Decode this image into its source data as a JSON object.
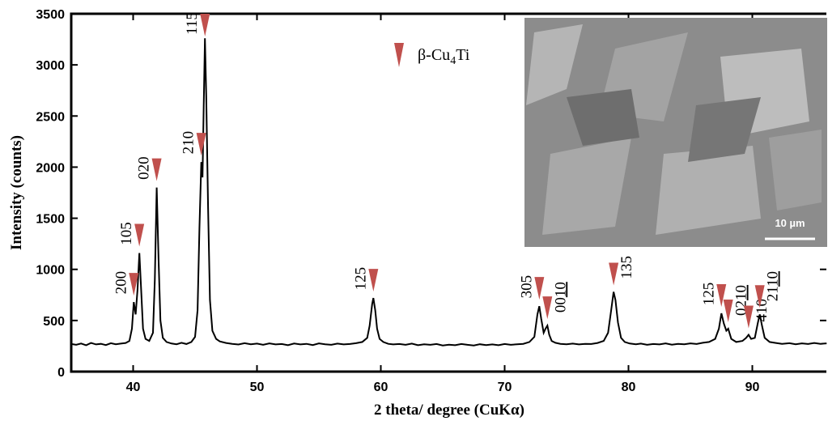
{
  "chart_data": {
    "type": "line",
    "xlabel": "2 theta/ degree (CuKα)",
    "ylabel": "Intensity (counts)",
    "xlim": [
      35,
      96
    ],
    "ylim": [
      0,
      3500
    ],
    "xticks": [
      40,
      50,
      60,
      70,
      80,
      90
    ],
    "yticks": [
      0,
      500,
      1000,
      1500,
      2000,
      2500,
      3000,
      3500
    ],
    "grid": false,
    "color": "#000000",
    "marker_color": "#c0504d",
    "legend": {
      "parts": [
        "β-Cu",
        "4",
        "Ti"
      ]
    },
    "inset": {
      "scale_bar_label": "10 µm"
    },
    "x": [
      35.0,
      35.4,
      35.8,
      36.2,
      36.6,
      37.0,
      37.4,
      37.8,
      38.2,
      38.6,
      39.0,
      39.4,
      39.7,
      39.9,
      40.05,
      40.2,
      40.35,
      40.5,
      40.65,
      40.8,
      41.0,
      41.3,
      41.6,
      41.75,
      41.9,
      42.05,
      42.2,
      42.4,
      42.7,
      43.1,
      43.5,
      43.9,
      44.3,
      44.7,
      45.0,
      45.2,
      45.35,
      45.5,
      45.6,
      45.7,
      45.8,
      45.9,
      46.05,
      46.2,
      46.4,
      46.7,
      47.0,
      47.5,
      48,
      48.5,
      49,
      49.5,
      50,
      50.5,
      51,
      51.5,
      52,
      52.5,
      53,
      53.5,
      54,
      54.5,
      55,
      55.5,
      56,
      56.5,
      57,
      57.5,
      58,
      58.5,
      58.9,
      59.1,
      59.3,
      59.4,
      59.55,
      59.7,
      59.9,
      60.2,
      60.6,
      61,
      61.5,
      62,
      62.5,
      63,
      63.5,
      64,
      64.5,
      65,
      65.5,
      66,
      66.5,
      67,
      67.5,
      68,
      68.5,
      69,
      69.5,
      70,
      70.5,
      71,
      71.5,
      72,
      72.4,
      72.65,
      72.8,
      72.95,
      73.15,
      73.3,
      73.45,
      73.6,
      73.8,
      74.1,
      74.5,
      75,
      75.5,
      76,
      76.5,
      77,
      77.5,
      78,
      78.35,
      78.6,
      78.8,
      78.95,
      79.15,
      79.4,
      79.7,
      80.1,
      80.6,
      81,
      81.5,
      82,
      82.5,
      83,
      83.5,
      84,
      84.5,
      85,
      85.5,
      86,
      86.5,
      87,
      87.3,
      87.5,
      87.7,
      87.9,
      88.05,
      88.3,
      88.7,
      89.2,
      89.5,
      89.7,
      89.9,
      90.2,
      90.45,
      90.6,
      90.8,
      91.0,
      91.4,
      91.9,
      92.4,
      93,
      93.5,
      94,
      94.5,
      95,
      95.5,
      96
    ],
    "values": [
      270,
      262,
      275,
      258,
      280,
      266,
      272,
      260,
      278,
      268,
      274,
      280,
      300,
      420,
      680,
      560,
      800,
      1160,
      800,
      420,
      320,
      300,
      380,
      900,
      1800,
      1100,
      500,
      330,
      290,
      275,
      268,
      282,
      270,
      290,
      340,
      600,
      1400,
      2050,
      1900,
      2600,
      3260,
      2700,
      1600,
      700,
      400,
      320,
      295,
      280,
      272,
      265,
      278,
      268,
      274,
      262,
      276,
      266,
      270,
      258,
      275,
      266,
      272,
      260,
      276,
      268,
      262,
      274,
      266,
      270,
      278,
      290,
      330,
      450,
      660,
      720,
      600,
      420,
      320,
      290,
      272,
      266,
      270,
      262,
      274,
      258,
      268,
      262,
      270,
      256,
      264,
      258,
      270,
      262,
      256,
      268,
      260,
      266,
      258,
      270,
      262,
      268,
      272,
      290,
      340,
      560,
      640,
      520,
      380,
      420,
      450,
      360,
      300,
      282,
      272,
      268,
      274,
      266,
      272,
      270,
      280,
      300,
      380,
      600,
      780,
      700,
      480,
      330,
      290,
      275,
      268,
      274,
      262,
      270,
      266,
      276,
      264,
      272,
      268,
      276,
      270,
      282,
      290,
      320,
      420,
      570,
      470,
      400,
      420,
      320,
      290,
      300,
      330,
      360,
      320,
      330,
      480,
      560,
      440,
      330,
      290,
      280,
      272,
      278,
      268,
      276,
      270,
      280,
      272,
      276
    ],
    "annotations": [
      {
        "label": "200",
        "x": 40.05,
        "side": "left"
      },
      {
        "label": "105",
        "x": 40.5,
        "side": "left"
      },
      {
        "label": "020",
        "x": 41.9,
        "side": "left"
      },
      {
        "label": "210",
        "x": 45.5,
        "side": "left"
      },
      {
        "label": "115",
        "x": 45.8,
        "side": "left"
      },
      {
        "label": "125",
        "x": 59.4,
        "side": "left"
      },
      {
        "label": "305",
        "x": 72.8,
        "side": "left"
      },
      {
        "label": "00",
        "label_underlined": "10",
        "x": 73.45,
        "side": "right"
      },
      {
        "label": "135",
        "x": 78.8,
        "side": "right"
      },
      {
        "label": "125",
        "x": 87.5,
        "side": "left"
      },
      {
        "label": "02",
        "label_underlined": "10",
        "x": 88.05,
        "side": "right"
      },
      {
        "label": "410",
        "x": 89.7,
        "side": "right"
      },
      {
        "label": "21",
        "label_underlined": "10",
        "x": 90.6,
        "side": "right"
      }
    ]
  }
}
